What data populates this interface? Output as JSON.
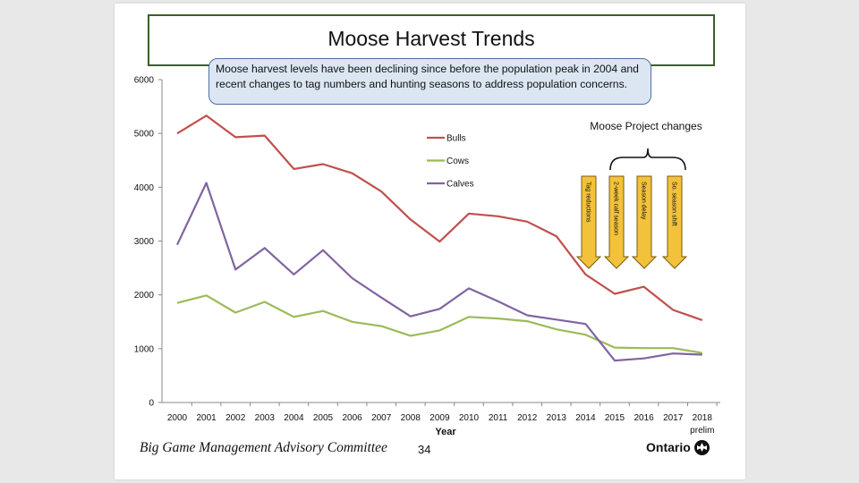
{
  "title": "Moose Harvest Trends",
  "callout": "Moose harvest levels have been declining since before the population peak in 2004 and recent changes to tag numbers and hunting seasons to address population concerns.",
  "footer": {
    "committee": "Big Game Management Advisory Committee",
    "page": "34",
    "logo_text": "Ontario"
  },
  "chart_data": {
    "type": "line",
    "title": "",
    "xlabel": "Year",
    "ylabel": "",
    "ylim": [
      0,
      6000
    ],
    "yticks": [
      0,
      1000,
      2000,
      3000,
      4000,
      5000,
      6000
    ],
    "categories": [
      "2000",
      "2001",
      "2002",
      "2003",
      "2004",
      "2005",
      "2006",
      "2007",
      "2008",
      "2009",
      "2010",
      "2011",
      "2012",
      "2013",
      "2014",
      "2015",
      "2016",
      "2017",
      "2018"
    ],
    "category_sublabel": {
      "index": 18,
      "text": "prelim"
    },
    "legend_position": "top-center",
    "grid": false,
    "series": [
      {
        "name": "Bulls",
        "color": "#c0504d",
        "values": [
          5000,
          5330,
          4930,
          4960,
          4340,
          4430,
          4260,
          3920,
          3400,
          2990,
          3510,
          3460,
          3360,
          3090,
          2380,
          2020,
          2150,
          1720,
          1530
        ]
      },
      {
        "name": "Cows",
        "color": "#9bbb59",
        "values": [
          1850,
          1990,
          1670,
          1870,
          1590,
          1700,
          1500,
          1420,
          1240,
          1340,
          1590,
          1560,
          1510,
          1360,
          1260,
          1020,
          1010,
          1010,
          920
        ]
      },
      {
        "name": "Calves",
        "color": "#8064a2",
        "values": [
          2930,
          4080,
          2470,
          2870,
          2380,
          2830,
          2310,
          1950,
          1600,
          1740,
          2120,
          1880,
          1620,
          1540,
          1460,
          780,
          820,
          910,
          890
        ]
      }
    ],
    "annotations": {
      "header": "Moose Project changes",
      "arrows": [
        {
          "label": "Tag reductions",
          "year": "2014"
        },
        {
          "label": "2-week calf season",
          "year": "2015"
        },
        {
          "label": "Season delay",
          "year": "2016"
        },
        {
          "label": "So. season shift",
          "year": "2017"
        }
      ],
      "arrow_color": "#f2c23a"
    }
  }
}
